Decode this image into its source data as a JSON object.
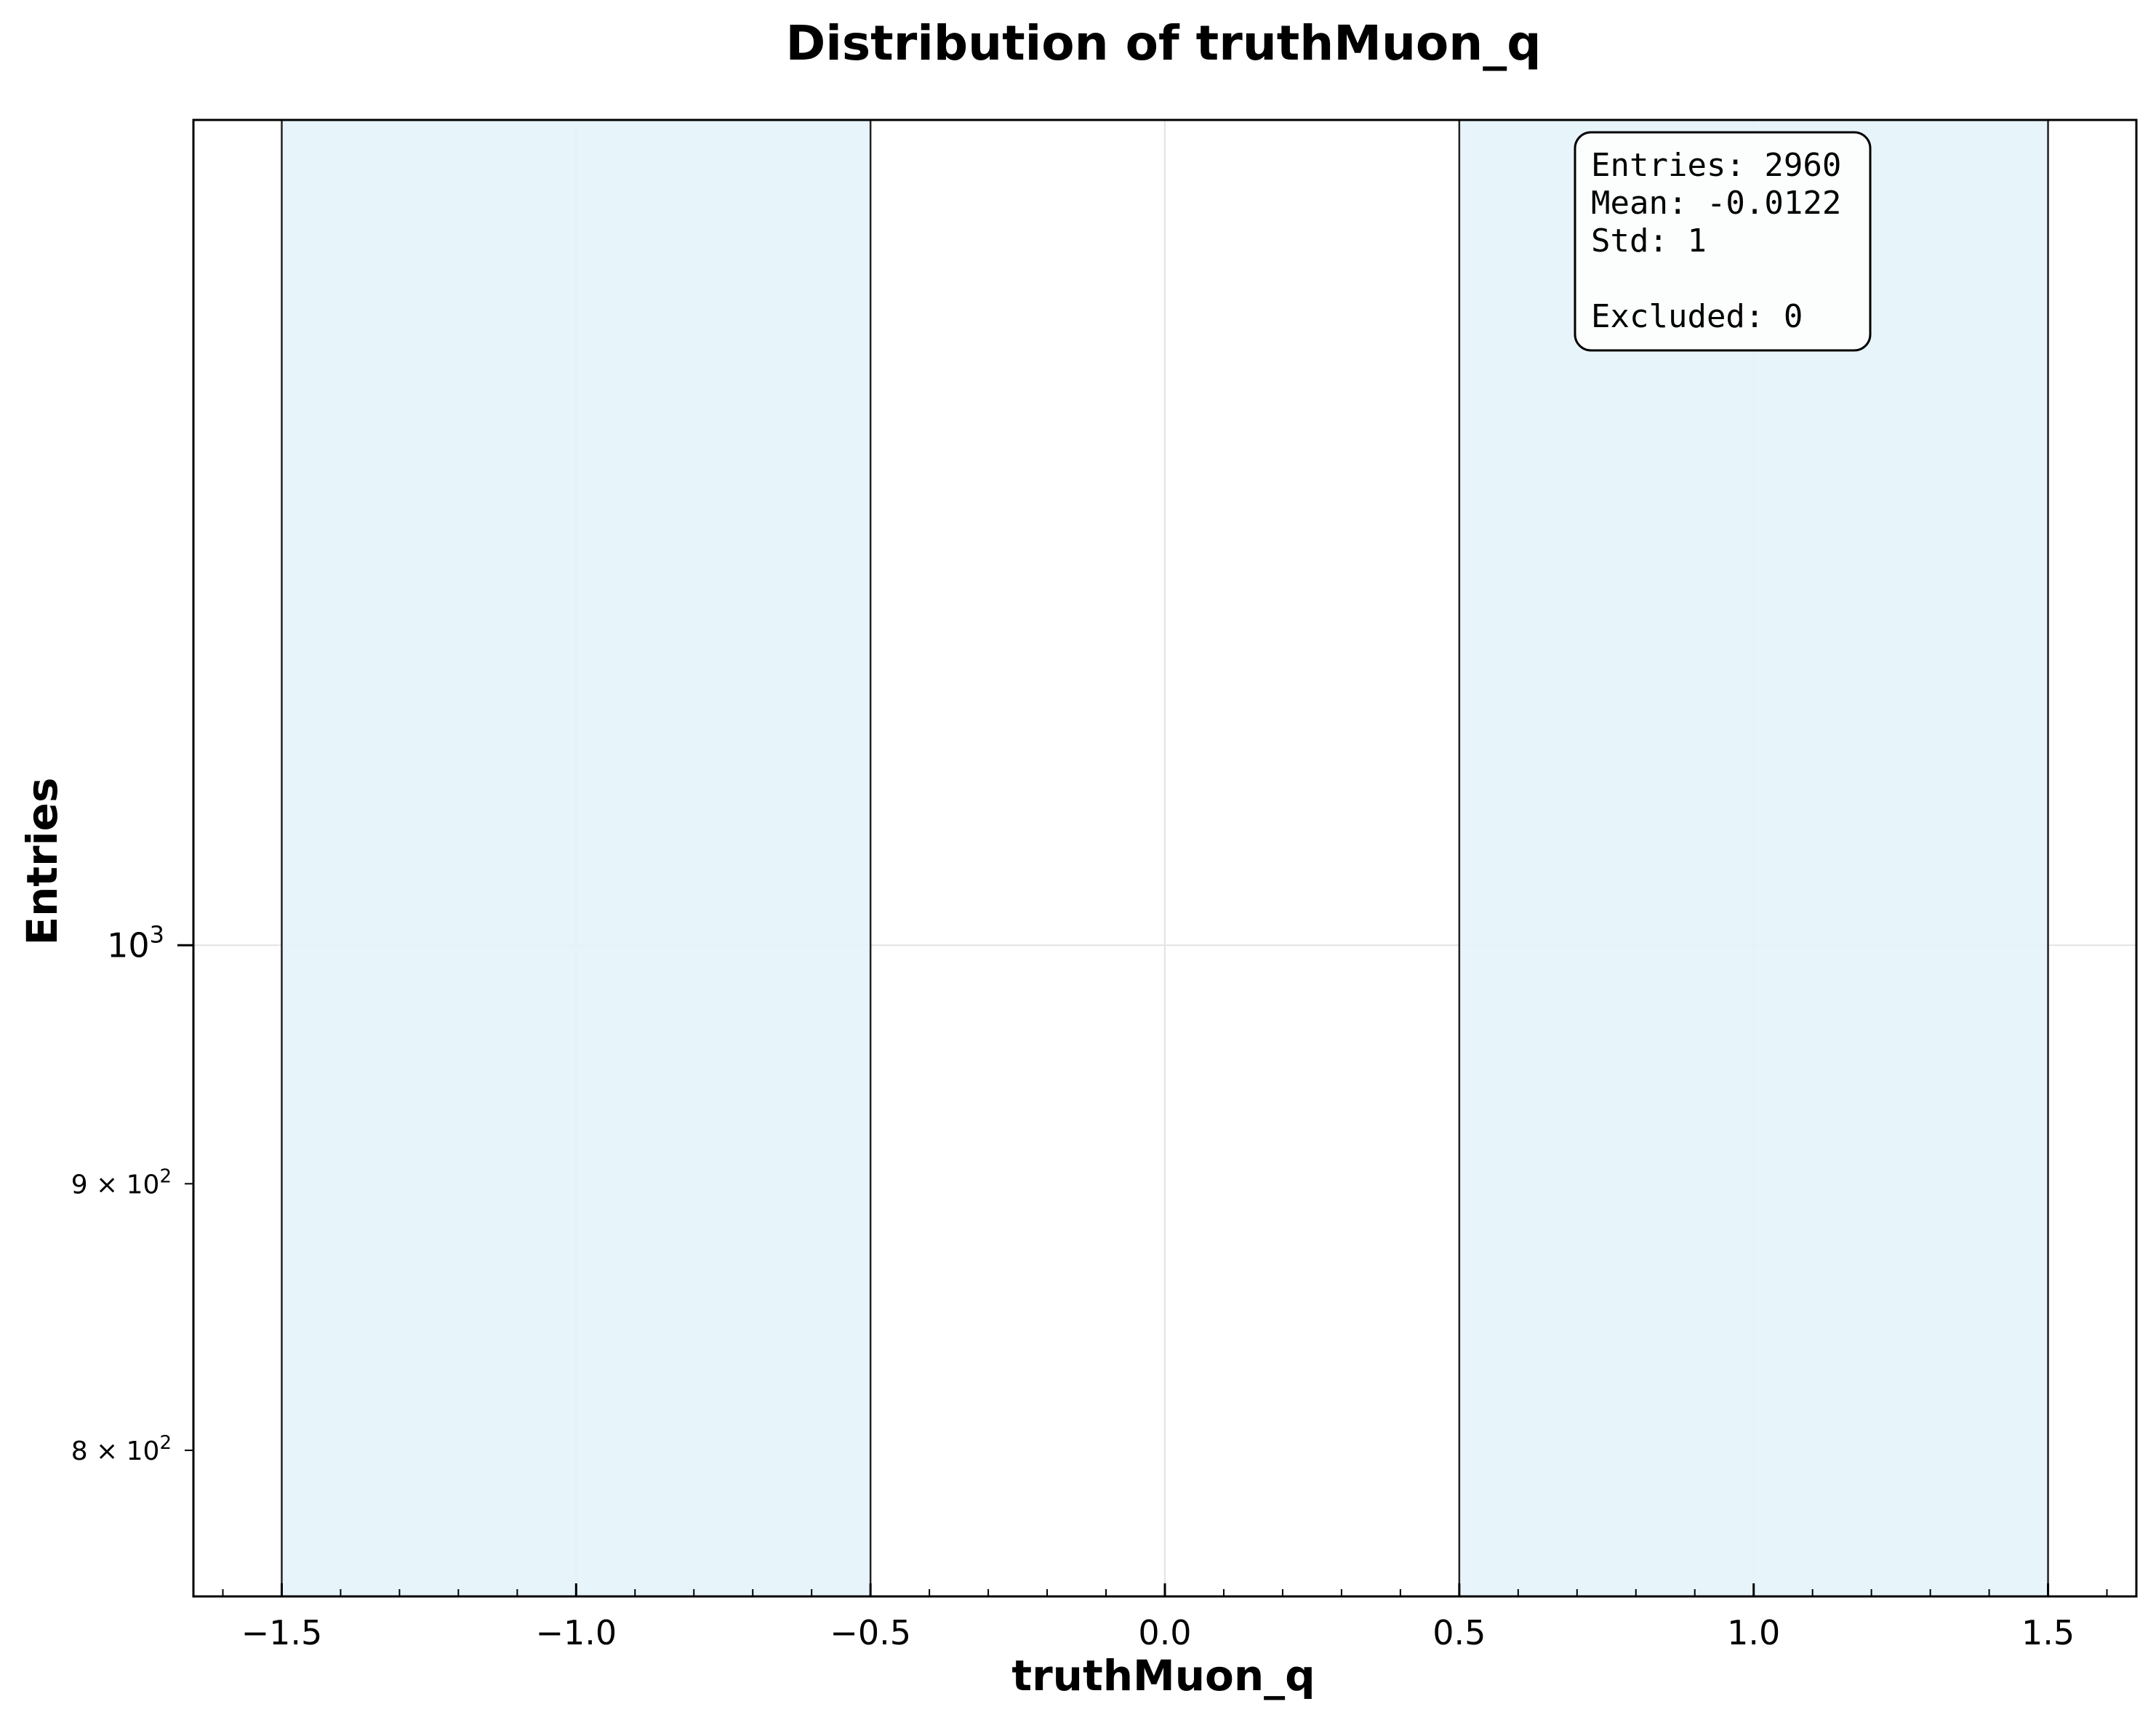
{
  "chart_data": {
    "type": "bar",
    "title": "Distribution of truthMuon_q",
    "xlabel": "truthMuon_q",
    "ylabel": "Entries",
    "y_scale": "log",
    "xlim": [
      -1.65,
      1.65
    ],
    "ylim": [
      750,
      1440
    ],
    "bins": [
      {
        "x0": -1.5,
        "x1": -0.5,
        "value": 1498
      },
      {
        "x0": -0.5,
        "x1": 0.5,
        "value": 0
      },
      {
        "x0": 0.5,
        "x1": 1.5,
        "value": 1462
      }
    ],
    "bar_color": "#e4f3f8",
    "edge_color": "#222222",
    "grid": true,
    "x_ticks": [
      {
        "value": -1.5,
        "label": "−1.5"
      },
      {
        "value": -1.0,
        "label": "−1.0"
      },
      {
        "value": -0.5,
        "label": "−0.5"
      },
      {
        "value": 0.0,
        "label": "0.0"
      },
      {
        "value": 0.5,
        "label": "0.5"
      },
      {
        "value": 1.0,
        "label": "1.0"
      },
      {
        "value": 1.5,
        "label": "1.5"
      }
    ],
    "y_ticks": [
      {
        "value": 1000,
        "base": "10",
        "exp": "3",
        "major": true
      },
      {
        "value": 900,
        "base": "9 × 10",
        "exp": "2",
        "major": false
      },
      {
        "value": 800,
        "base": "8 × 10",
        "exp": "2",
        "major": false
      }
    ],
    "stats_box": {
      "placement": "top-right",
      "lines": [
        "Entries: 2960",
        "Mean: -0.0122",
        "Std: 1",
        "",
        "Excluded: 0"
      ]
    }
  }
}
